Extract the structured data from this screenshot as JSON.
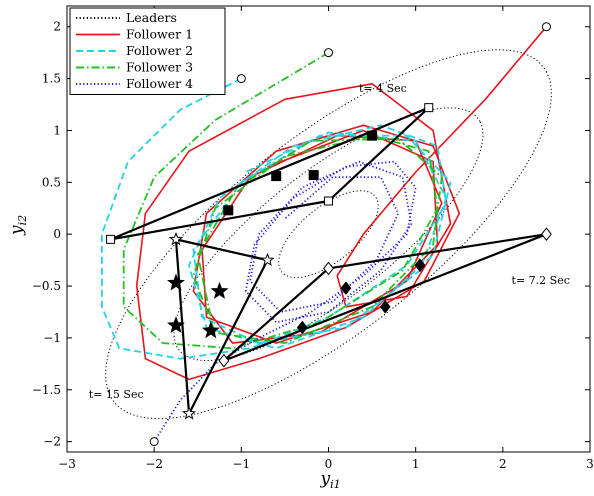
{
  "chart_data": {
    "type": "line",
    "xlabel": "y",
    "xlabel_sub": "i1",
    "ylabel": "y",
    "ylabel_sub": "i2",
    "xlim": [
      -3,
      3
    ],
    "ylim": [
      -2.1,
      2.2
    ],
    "x_ticks": [
      -3,
      -2,
      -1,
      0,
      1,
      2,
      3
    ],
    "y_ticks": [
      -2,
      -1.5,
      -1,
      -0.5,
      0,
      0.5,
      1,
      1.5,
      2
    ],
    "legend": {
      "placement": "top-left",
      "entries": [
        {
          "label": "Leaders",
          "color": "#000000",
          "style": "dotted"
        },
        {
          "label": "Follower 1",
          "color": "#e8141c",
          "style": "solid"
        },
        {
          "label": "Follower 2",
          "color": "#22d3e6",
          "style": "dashed"
        },
        {
          "label": "Follower 3",
          "color": "#22c022",
          "style": "dashdot"
        },
        {
          "label": "Follower 4",
          "color": "#1a1ad8",
          "style": "dotted"
        }
      ]
    },
    "annotations": [
      {
        "text": "t= 4 Sec",
        "x": 0.35,
        "y": 1.37
      },
      {
        "text": "t= 7.2 Sec",
        "x": 2.1,
        "y": -0.48
      },
      {
        "text": "t= 15 Sec",
        "x": -2.75,
        "y": -1.58
      }
    ],
    "leader_ellipses": [
      {
        "cx": 0.0,
        "cy": 0.0,
        "a": 2.95,
        "b": 1.0,
        "angle_deg": 32
      },
      {
        "cx": 0.0,
        "cy": 0.0,
        "a": 2.05,
        "b": 0.65,
        "angle_deg": 32
      },
      {
        "cx": 0.0,
        "cy": 0.0,
        "a": 0.65,
        "b": 0.28,
        "angle_deg": 32
      }
    ],
    "followers": [
      {
        "name": "Follower 1",
        "color": "#e8141c",
        "start": [
          2.5,
          2.0
        ],
        "path": [
          [
            2.5,
            2.0
          ],
          [
            1.8,
            1.3
          ],
          [
            1.0,
            0.6
          ],
          [
            0.4,
            0.0
          ],
          [
            0.1,
            -0.4
          ],
          [
            0.2,
            -0.7
          ],
          [
            0.9,
            -0.6
          ],
          [
            1.4,
            0.1
          ],
          [
            1.2,
            1.0
          ],
          [
            0.5,
            1.45
          ],
          [
            -0.5,
            1.3
          ],
          [
            -1.6,
            0.8
          ],
          [
            -2.1,
            0.2
          ],
          [
            -2.2,
            -0.5
          ],
          [
            -2.1,
            -1.2
          ],
          [
            -1.6,
            -1.4
          ],
          [
            -0.8,
            -1.2
          ],
          [
            0.2,
            -0.9
          ],
          [
            1.1,
            -0.45
          ],
          [
            1.5,
            0.2
          ],
          [
            1.2,
            0.85
          ],
          [
            0.4,
            1.05
          ],
          [
            -0.6,
            0.8
          ],
          [
            -1.4,
            0.2
          ],
          [
            -1.55,
            -0.55
          ],
          [
            -1.1,
            -1.05
          ],
          [
            -0.1,
            -0.95
          ],
          [
            0.9,
            -0.45
          ],
          [
            1.3,
            0.3
          ],
          [
            1.0,
            0.9
          ],
          [
            0.1,
            0.95
          ],
          [
            -0.9,
            0.55
          ],
          [
            -1.45,
            -0.15
          ],
          [
            -1.4,
            -0.8
          ],
          [
            -0.6,
            -1.05
          ],
          [
            0.5,
            -0.75
          ],
          [
            1.25,
            -0.1
          ],
          [
            1.2,
            0.7
          ],
          [
            0.4,
            1.0
          ],
          [
            -0.7,
            0.65
          ]
        ]
      },
      {
        "name": "Follower 2",
        "color": "#22d3e6",
        "start": [
          -1.0,
          1.5
        ],
        "path": [
          [
            -1.0,
            1.5
          ],
          [
            -1.7,
            1.2
          ],
          [
            -2.3,
            0.7
          ],
          [
            -2.6,
            0.0
          ],
          [
            -2.6,
            -0.7
          ],
          [
            -2.4,
            -1.1
          ],
          [
            -1.7,
            -1.2
          ],
          [
            -0.9,
            -1.1
          ],
          [
            0.0,
            -0.8
          ],
          [
            0.9,
            -0.3
          ],
          [
            1.35,
            0.3
          ],
          [
            1.25,
            0.85
          ],
          [
            0.6,
            1.05
          ],
          [
            -0.4,
            0.85
          ],
          [
            -1.25,
            0.35
          ],
          [
            -1.6,
            -0.3
          ],
          [
            -1.4,
            -0.9
          ],
          [
            -0.6,
            -1.1
          ],
          [
            0.4,
            -0.8
          ],
          [
            1.2,
            -0.2
          ],
          [
            1.4,
            0.5
          ],
          [
            0.9,
            0.95
          ],
          [
            -0.1,
            0.95
          ],
          [
            -1.0,
            0.5
          ],
          [
            -1.55,
            -0.15
          ],
          [
            -1.45,
            -0.8
          ],
          [
            -0.8,
            -1.05
          ],
          [
            0.2,
            -0.9
          ],
          [
            1.05,
            -0.35
          ],
          [
            1.35,
            0.35
          ],
          [
            1.0,
            0.9
          ],
          [
            0.0,
            0.98
          ],
          [
            -0.95,
            0.6
          ]
        ]
      },
      {
        "name": "Follower 3",
        "color": "#22c022",
        "start": [
          0.0,
          1.75
        ],
        "path": [
          [
            0.0,
            1.75
          ],
          [
            -0.6,
            1.45
          ],
          [
            -1.3,
            1.1
          ],
          [
            -2.0,
            0.55
          ],
          [
            -2.35,
            -0.15
          ],
          [
            -2.35,
            -0.7
          ],
          [
            -1.9,
            -1.05
          ],
          [
            -1.1,
            -1.1
          ],
          [
            -0.1,
            -0.85
          ],
          [
            0.85,
            -0.35
          ],
          [
            1.25,
            0.25
          ],
          [
            1.15,
            0.8
          ],
          [
            0.5,
            0.95
          ],
          [
            -0.5,
            0.75
          ],
          [
            -1.3,
            0.25
          ],
          [
            -1.55,
            -0.4
          ],
          [
            -1.3,
            -0.95
          ],
          [
            -0.5,
            -1.05
          ],
          [
            0.5,
            -0.7
          ],
          [
            1.2,
            -0.1
          ],
          [
            1.3,
            0.55
          ],
          [
            0.8,
            0.92
          ],
          [
            -0.2,
            0.9
          ],
          [
            -1.05,
            0.45
          ],
          [
            -1.5,
            -0.2
          ],
          [
            -1.35,
            -0.8
          ]
        ]
      },
      {
        "name": "Follower 4",
        "color": "#1a1ad8",
        "start": [
          -2.0,
          -2.0
        ],
        "path": [
          [
            -2.0,
            -2.0
          ],
          [
            -1.7,
            -1.6
          ],
          [
            -1.3,
            -1.25
          ],
          [
            -0.8,
            -1.0
          ],
          [
            -0.2,
            -0.75
          ],
          [
            0.4,
            -0.4
          ],
          [
            0.9,
            0.0
          ],
          [
            1.0,
            0.45
          ],
          [
            0.75,
            0.7
          ],
          [
            0.2,
            0.65
          ],
          [
            -0.4,
            0.35
          ],
          [
            -0.85,
            -0.1
          ],
          [
            -0.95,
            -0.55
          ],
          [
            -0.6,
            -0.85
          ],
          [
            0.0,
            -0.75
          ],
          [
            0.6,
            -0.35
          ],
          [
            0.95,
            0.1
          ],
          [
            0.85,
            0.55
          ],
          [
            0.35,
            0.7
          ],
          [
            -0.3,
            0.45
          ],
          [
            -0.8,
            0.0
          ],
          [
            -0.9,
            -0.45
          ],
          [
            -0.55,
            -0.75
          ],
          [
            0.05,
            -0.65
          ],
          [
            0.55,
            -0.25
          ],
          [
            0.8,
            0.2
          ],
          [
            0.6,
            0.55
          ],
          [
            0.05,
            0.55
          ],
          [
            -0.5,
            0.15
          ]
        ]
      }
    ],
    "formations": [
      {
        "time": "t= 4 Sec",
        "leaders": [
          [
            -2.5,
            -0.05
          ],
          [
            1.15,
            1.22
          ],
          [
            0.0,
            0.32
          ]
        ],
        "followers": [
          [
            -1.15,
            0.23
          ],
          [
            -0.6,
            0.56
          ],
          [
            -0.17,
            0.57
          ],
          [
            0.5,
            0.95
          ]
        ],
        "marker": "square"
      },
      {
        "time": "t= 7.2 Sec",
        "leaders": [
          [
            2.5,
            0.0
          ],
          [
            0.0,
            -0.33
          ],
          [
            -1.2,
            -1.22
          ]
        ],
        "followers": [
          [
            1.05,
            -0.3
          ],
          [
            0.65,
            -0.7
          ],
          [
            0.2,
            -0.52
          ],
          [
            -0.3,
            -0.9
          ]
        ],
        "marker": "diamond"
      },
      {
        "time": "t= 15 Sec",
        "leaders": [
          [
            -1.6,
            -1.73
          ],
          [
            -1.75,
            -0.05
          ],
          [
            -0.7,
            -0.25
          ]
        ],
        "followers": [
          [
            -1.75,
            -0.47
          ],
          [
            -1.75,
            -0.88
          ],
          [
            -1.35,
            -0.93
          ],
          [
            -1.25,
            -0.55
          ]
        ],
        "marker": "star"
      }
    ],
    "leader_starts": [
      [
        2.5,
        2.0
      ],
      [
        0.0,
        1.75
      ],
      [
        -1.0,
        1.5
      ],
      [
        -2.0,
        -2.0
      ]
    ],
    "grid": false
  }
}
